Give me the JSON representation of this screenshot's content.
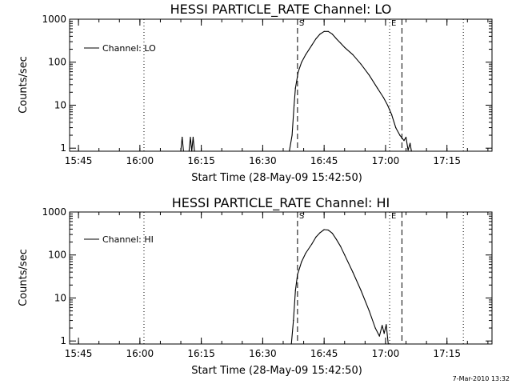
{
  "figure": {
    "timestamp": "7-Mar-2010 13:32"
  },
  "chart_data": [
    {
      "type": "line",
      "title": "HESSI PARTICLE_RATE Channel: LO",
      "xlabel": "Start Time (28-May-09 15:42:50)",
      "ylabel": "Counts/sec",
      "yscale": "log",
      "xlim": [
        "15:42:50",
        "17:26:00"
      ],
      "ylim": [
        0.85,
        1000
      ],
      "xticks": [
        "15:45",
        "16:00",
        "16:15",
        "16:30",
        "16:45",
        "17:00",
        "17:15"
      ],
      "yticks": [
        {
          "value": 1,
          "label": "1"
        },
        {
          "value": 10,
          "label": "10"
        },
        {
          "value": 100,
          "label": "100"
        },
        {
          "value": 1000,
          "label": "1000"
        }
      ],
      "legend": {
        "placement": "top-left",
        "entries": [
          "Channel: LO"
        ]
      },
      "markers": [
        {
          "time": "16:01:00",
          "style": "dotted",
          "label": ""
        },
        {
          "time": "16:38:30",
          "style": "dashed",
          "label": "S"
        },
        {
          "time": "17:01:00",
          "style": "dotted",
          "label": "E"
        },
        {
          "time": "17:04:00",
          "style": "dashed",
          "label": ""
        },
        {
          "time": "17:19:00",
          "style": "dotted",
          "label": ""
        }
      ],
      "series": [
        {
          "name": "Channel: LO",
          "points": [
            [
              "16:10:00",
              0.8
            ],
            [
              "16:10:20",
              1.8
            ],
            [
              "16:10:40",
              0.8
            ],
            [
              "16:12:00",
              0.8
            ],
            [
              "16:12:20",
              1.8
            ],
            [
              "16:12:40",
              0.8
            ],
            [
              "16:13:00",
              1.8
            ],
            [
              "16:13:20",
              0.8
            ],
            [
              "16:36:30",
              0.8
            ],
            [
              "16:37:10",
              2
            ],
            [
              "16:37:40",
              10
            ],
            [
              "16:38:00",
              25
            ],
            [
              "16:38:40",
              60
            ],
            [
              "16:39:30",
              100
            ],
            [
              "16:40:30",
              150
            ],
            [
              "16:42:00",
              250
            ],
            [
              "16:43:00",
              350
            ],
            [
              "16:44:00",
              450
            ],
            [
              "16:45:00",
              520
            ],
            [
              "16:46:00",
              520
            ],
            [
              "16:47:00",
              450
            ],
            [
              "16:48:00",
              350
            ],
            [
              "16:49:00",
              280
            ],
            [
              "16:50:00",
              220
            ],
            [
              "16:52:00",
              150
            ],
            [
              "16:54:00",
              90
            ],
            [
              "16:56:00",
              50
            ],
            [
              "16:58:00",
              25
            ],
            [
              "16:59:30",
              15
            ],
            [
              "17:00:30",
              10
            ],
            [
              "17:01:30",
              6
            ],
            [
              "17:02:30",
              3
            ],
            [
              "17:03:30",
              2
            ],
            [
              "17:04:30",
              1.5
            ],
            [
              "17:05:00",
              1.8
            ],
            [
              "17:05:30",
              0.9
            ],
            [
              "17:06:00",
              1.3
            ],
            [
              "17:06:20",
              0.8
            ]
          ]
        }
      ]
    },
    {
      "type": "line",
      "title": "HESSI PARTICLE_RATE Channel: HI",
      "xlabel": "Start Time (28-May-09 15:42:50)",
      "ylabel": "Counts/sec",
      "yscale": "log",
      "xlim": [
        "15:42:50",
        "17:26:00"
      ],
      "ylim": [
        0.85,
        1000
      ],
      "xticks": [
        "15:45",
        "16:00",
        "16:15",
        "16:30",
        "16:45",
        "17:00",
        "17:15"
      ],
      "yticks": [
        {
          "value": 1,
          "label": "1"
        },
        {
          "value": 10,
          "label": "10"
        },
        {
          "value": 100,
          "label": "100"
        },
        {
          "value": 1000,
          "label": "1000"
        }
      ],
      "legend": {
        "placement": "top-left",
        "entries": [
          "Channel: HI"
        ]
      },
      "markers": [
        {
          "time": "16:01:00",
          "style": "dotted",
          "label": ""
        },
        {
          "time": "16:38:30",
          "style": "dashed",
          "label": "S"
        },
        {
          "time": "17:01:00",
          "style": "dotted",
          "label": "E"
        },
        {
          "time": "17:04:00",
          "style": "dashed",
          "label": ""
        },
        {
          "time": "17:19:00",
          "style": "dotted",
          "label": ""
        }
      ],
      "series": [
        {
          "name": "Channel: HI",
          "points": [
            [
              "16:37:00",
              0.8
            ],
            [
              "16:37:30",
              3
            ],
            [
              "16:38:00",
              15
            ],
            [
              "16:38:30",
              35
            ],
            [
              "16:39:30",
              70
            ],
            [
              "16:40:30",
              110
            ],
            [
              "16:42:00",
              180
            ],
            [
              "16:43:00",
              260
            ],
            [
              "16:44:00",
              330
            ],
            [
              "16:45:00",
              390
            ],
            [
              "16:46:00",
              380
            ],
            [
              "16:47:00",
              320
            ],
            [
              "16:48:00",
              230
            ],
            [
              "16:49:00",
              160
            ],
            [
              "16:50:00",
              100
            ],
            [
              "16:52:00",
              40
            ],
            [
              "16:54:00",
              15
            ],
            [
              "16:56:00",
              5
            ],
            [
              "16:57:30",
              2
            ],
            [
              "16:58:30",
              1.3
            ],
            [
              "16:59:10",
              2.3
            ],
            [
              "16:59:40",
              1.5
            ],
            [
              "17:00:10",
              2.4
            ],
            [
              "17:00:40",
              0.8
            ]
          ]
        }
      ]
    }
  ]
}
